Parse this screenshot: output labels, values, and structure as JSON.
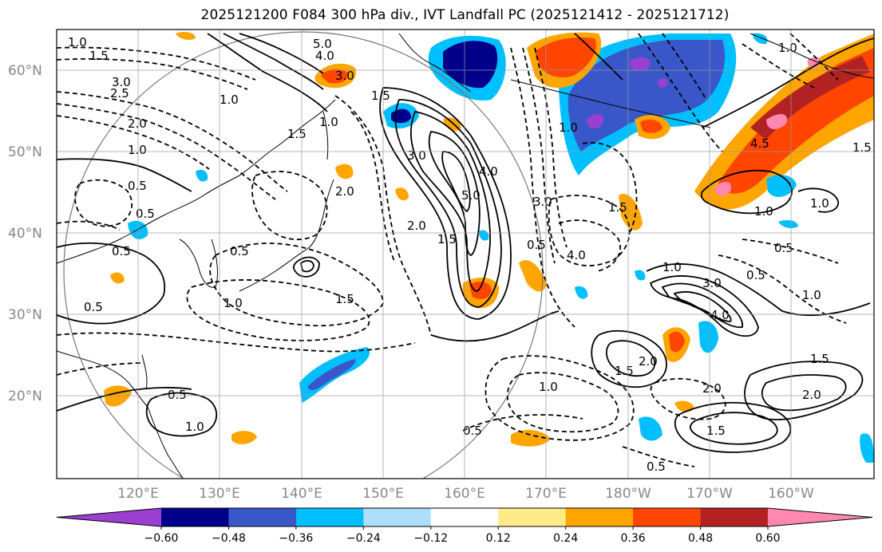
{
  "title": "2025121200 F084 300 hPa div., IVT Landfall PC (2025121412 - 2025121712)",
  "lat_labels": [
    "60°N",
    "50°N",
    "40°N",
    "30°N",
    "20°N"
  ],
  "lon_labels": [
    "120°E",
    "130°E",
    "140°E",
    "150°E",
    "160°E",
    "170°E",
    "180°W",
    "170°W",
    "160°W"
  ],
  "contour_labels": [
    "1.0",
    "1.5",
    "2.5",
    "3.0",
    "2.0",
    "1.0",
    "0.5",
    "0.5",
    "0.5",
    "1.0",
    "1.5",
    "1.0",
    "0.5",
    "1.0",
    "5.0",
    "4.0",
    "3.0",
    "1.5",
    "1.5",
    "2.0",
    "5.0",
    "4.0",
    "3.0",
    "1.5",
    "4.0",
    "2.0",
    "3.0",
    "1.5",
    "1.0",
    "0.5",
    "1.0",
    "3.0",
    "4.0",
    "2.0",
    "1.5",
    "1.0",
    "0.5",
    "1.0",
    "1.5",
    "2.0",
    "1.0",
    "0.5",
    "4.5",
    "1.0",
    "1.5",
    "1.0",
    "0.5",
    "1.5",
    "2.0",
    "0.5",
    "0.5",
    "1.0",
    "0.5"
  ],
  "colorbar": {
    "ticks": [
      "−0.60",
      "−0.48",
      "−0.36",
      "−0.24",
      "−0.12",
      "0.12",
      "0.24",
      "0.36",
      "0.48",
      "0.60"
    ],
    "colors": [
      "#9A3FD1",
      "#00008B",
      "#3A57C9",
      "#00BFFF",
      "#ADDFFA",
      "#FFFFFF",
      "#FFEB8A",
      "#FFA500",
      "#FF4500",
      "#B22222",
      "#FF88B0"
    ]
  }
}
